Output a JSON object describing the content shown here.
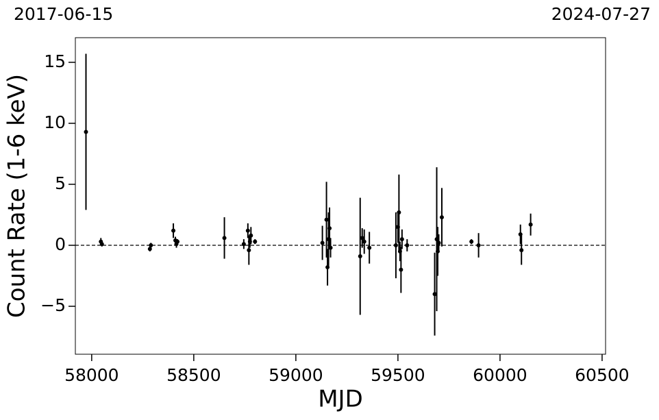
{
  "chart_data": {
    "type": "errorbar",
    "annotations": [
      "2017-06-15",
      "2024-07-27"
    ],
    "xlabel": "MJD",
    "ylabel": "Count Rate (1-6 keV)",
    "x": [
      57972,
      58045,
      58050,
      58285,
      58290,
      58400,
      58410,
      58415,
      58420,
      58650,
      58745,
      58765,
      58770,
      58775,
      58780,
      58800,
      59130,
      59150,
      59155,
      59160,
      59165,
      59170,
      59315,
      59325,
      59335,
      59360,
      59490,
      59500,
      59505,
      59510,
      59515,
      59520,
      59545,
      59680,
      59690,
      59695,
      59700,
      59715,
      59860,
      59895,
      60100,
      60105,
      60150
    ],
    "values": [
      9.3,
      0.3,
      0.1,
      -0.3,
      0.0,
      1.2,
      0.4,
      0.1,
      0.3,
      0.6,
      0.1,
      1.2,
      -0.4,
      0.3,
      0.8,
      0.3,
      0.2,
      2.1,
      -1.8,
      0.5,
      1.4,
      -0.2,
      -0.9,
      0.6,
      0.3,
      -0.2,
      0.0,
      1.5,
      2.7,
      -0.5,
      -2.0,
      0.5,
      0.0,
      -4.0,
      0.5,
      -0.5,
      0.2,
      2.3,
      0.3,
      0.0,
      0.9,
      -0.4,
      1.7
    ],
    "errors": [
      6.4,
      0.3,
      0.2,
      0.2,
      0.2,
      0.6,
      0.3,
      0.3,
      0.2,
      1.7,
      0.4,
      0.6,
      1.2,
      0.5,
      0.7,
      0.2,
      1.4,
      3.1,
      1.5,
      2.2,
      1.7,
      0.8,
      4.8,
      0.8,
      1.0,
      1.3,
      2.7,
      1.3,
      3.1,
      0.8,
      1.9,
      0.8,
      0.5,
      3.4,
      5.9,
      2.0,
      0.7,
      2.4,
      0.2,
      1.0,
      0.8,
      1.2,
      0.9
    ],
    "color": "#000000",
    "hline": 0,
    "xlim": [
      57920,
      60517
    ],
    "ylim": [
      -8.93,
      17.02
    ],
    "xticks": [
      58000,
      58500,
      59000,
      59500,
      60000,
      60500
    ],
    "yticks": [
      {
        "value": -5,
        "label": "−5"
      },
      0,
      5,
      10,
      15
    ],
    "grid": false
  }
}
